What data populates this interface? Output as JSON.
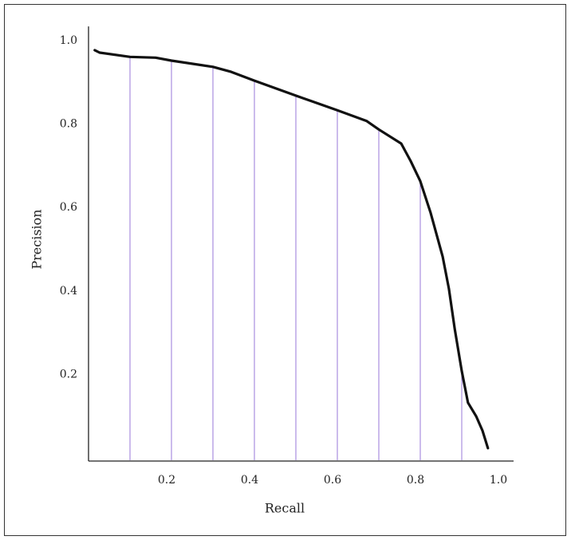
{
  "chart_data": {
    "type": "line",
    "x_label": "Recall",
    "y_label": "Precision",
    "xlim": [
      0,
      1.025
    ],
    "ylim": [
      0,
      1.04
    ],
    "xticks": [
      0.2,
      0.4,
      0.6,
      0.8,
      {
        "value": 1,
        "label": "1.0"
      }
    ],
    "yticks": [
      0.2,
      0.4,
      0.6,
      0.8,
      {
        "value": 1,
        "label": "1.0"
      }
    ],
    "series": [
      {
        "color": "#111111",
        "x": [
          0.015,
          0.027,
          0.1,
          0.162,
          0.2,
          0.3,
          0.344,
          0.4,
          0.5,
          0.6,
          0.671,
          0.7,
          0.754,
          0.777,
          0.8,
          0.825,
          0.854,
          0.869,
          0.883,
          0.9,
          0.915,
          0.935,
          0.95,
          0.963
        ],
        "values": [
          0.983,
          0.977,
          0.967,
          0.965,
          0.958,
          0.943,
          0.931,
          0.91,
          0.874,
          0.839,
          0.813,
          0.793,
          0.759,
          0.717,
          0.669,
          0.593,
          0.488,
          0.411,
          0.315,
          0.214,
          0.138,
          0.105,
          0.071,
          0.029
        ]
      }
    ],
    "drop_lines": {
      "color": "#a98ee0",
      "x": [
        0.1,
        0.2,
        0.3,
        0.4,
        0.5,
        0.6,
        0.7,
        0.8,
        0.9
      ],
      "values": [
        0.967,
        0.958,
        0.943,
        0.91,
        0.874,
        0.839,
        0.793,
        0.669,
        0.214
      ]
    }
  }
}
